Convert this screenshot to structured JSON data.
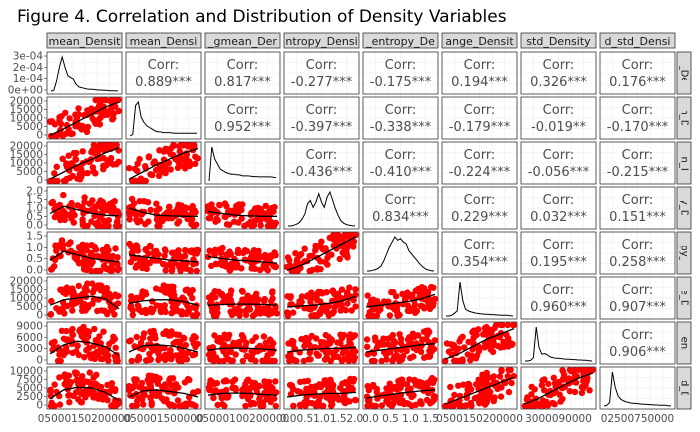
{
  "title": "Figure 4. Correlation and Distribution of Density Variables",
  "chart_data": {
    "type": "scatter",
    "matrix_type": "pairs-plot (ggpairs)",
    "upper_label_prefix": "Corr:",
    "colors": {
      "points": "#ff0000",
      "line": "#000000",
      "strip_bg": "#d9d9d9",
      "text": "#4d4d4d"
    },
    "column_strips": [
      "mean_Densit",
      "mean_Densi",
      "_gmean_Der",
      "ntropy_Densi",
      "_entropy_De",
      "ange_Densit",
      "std_Density",
      "d_std_Densi"
    ],
    "row_strips": [
      "n_Der",
      "an_De",
      "ean_De",
      "py_De",
      "tropy_De",
      "ge_De",
      "Densi",
      "std_De"
    ],
    "correlations": [
      [
        "",
        "0.889***",
        "0.817***",
        "-0.277***",
        "-0.175***",
        "0.194***",
        "0.326***",
        "0.176***"
      ],
      [
        "",
        "",
        "0.952***",
        "-0.397***",
        "-0.338***",
        "-0.179***",
        "-0.019**",
        "-0.170***"
      ],
      [
        "",
        "",
        "",
        "-0.436***",
        "-0.410***",
        "-0.224***",
        "-0.056***",
        "-0.215***"
      ],
      [
        "",
        "",
        "",
        "",
        "0.834***",
        "0.229***",
        "0.032***",
        "0.151***"
      ],
      [
        "",
        "",
        "",
        "",
        "",
        "0.354***",
        "0.195***",
        "0.258***"
      ],
      [
        "",
        "",
        "",
        "",
        "",
        "",
        "0.960***",
        "0.907***"
      ],
      [
        "",
        "",
        "",
        "",
        "",
        "",
        "",
        "0.906***"
      ],
      [
        "",
        "",
        "",
        "",
        "",
        "",
        "",
        ""
      ]
    ],
    "y_tick_labels": [
      [
        "3e-04",
        "2e-04",
        "1e-04",
        "0e+00"
      ],
      [
        "20000",
        "15000",
        "10000",
        "5000",
        "0"
      ],
      [
        "20000",
        "15000",
        "10000",
        "5000",
        "0"
      ],
      [
        "2.0",
        "1.5",
        "1.0",
        "0.5",
        "0.0"
      ],
      [
        "1.5",
        "1.0",
        "0.5",
        "0.0"
      ],
      [
        "20000",
        "15000",
        "10000",
        "5000",
        "0"
      ],
      [
        "9000",
        "6000",
        "3000",
        "0"
      ],
      [
        "10000",
        "7500",
        "5000",
        "2500",
        "0"
      ]
    ],
    "x_tick_labels": [
      "05000150200000",
      "050001500000",
      "05000100200000",
      "0.00.51.01.52.0",
      "0.0 0.5 1.0 1.5",
      "0500150200000",
      "3000090000",
      "02500750000"
    ],
    "diag_density": [
      [
        0,
        0.02,
        0.3,
        0.7,
        1,
        0.7,
        0.45,
        0.4,
        0.35,
        0.2,
        0.12,
        0.1,
        0.08,
        0.06,
        0.05,
        0.05,
        0.04,
        0.03,
        0.03,
        0.02,
        0.02,
        0.01,
        0.01,
        0.01,
        0
      ],
      [
        0,
        0.05,
        0.9,
        1,
        0.55,
        0.4,
        0.3,
        0.25,
        0.2,
        0.15,
        0.12,
        0.12,
        0.1,
        0.1,
        0.1,
        0.09,
        0.08,
        0.08,
        0.08,
        0.08,
        0.08,
        0.08,
        0.08,
        0.08,
        0.08
      ],
      [
        0,
        1,
        0.65,
        0.5,
        0.35,
        0.3,
        0.25,
        0.22,
        0.2,
        0.2,
        0.18,
        0.18,
        0.15,
        0.15,
        0.15,
        0.14,
        0.13,
        0.13,
        0.12,
        0.12,
        0.12,
        0.12,
        0.12,
        0.11,
        0.1
      ],
      [
        0,
        0,
        0.02,
        0.05,
        0.1,
        0.2,
        0.35,
        0.65,
        0.75,
        0.55,
        0.7,
        0.95,
        0.7,
        0.55,
        0.85,
        1,
        0.75,
        0.5,
        0.3,
        0.15,
        0.08,
        0.04,
        0.02,
        0.01,
        0
      ],
      [
        0,
        0,
        0.02,
        0.04,
        0.08,
        0.15,
        0.3,
        0.5,
        0.7,
        0.85,
        1,
        0.9,
        0.95,
        0.85,
        0.8,
        0.6,
        0.5,
        0.4,
        0.3,
        0.2,
        0.12,
        0.06,
        0.03,
        0.01,
        0
      ],
      [
        0,
        0,
        0.02,
        0.08,
        0.15,
        1,
        0.45,
        0.2,
        0.15,
        0.12,
        0.1,
        0.08,
        0.07,
        0.06,
        0.05,
        0.05,
        0.04,
        0.04,
        0.03,
        0.03,
        0.02,
        0.02,
        0.02,
        0.01,
        0
      ],
      [
        0,
        0,
        0.02,
        0.1,
        1,
        0.4,
        0.2,
        0.22,
        0.18,
        0.12,
        0.1,
        0.08,
        0.08,
        0.07,
        0.06,
        0.05,
        0.05,
        0.04,
        0.04,
        0.03,
        0.03,
        0.02,
        0.02,
        0.01,
        0
      ],
      [
        0,
        0.02,
        0.1,
        1,
        0.55,
        0.3,
        0.2,
        0.15,
        0.12,
        0.1,
        0.08,
        0.08,
        0.07,
        0.06,
        0.05,
        0.05,
        0.04,
        0.04,
        0.03,
        0.03,
        0.02,
        0.02,
        0.02,
        0.01,
        0
      ]
    ],
    "scatter_panels": [
      {
        "row": 1,
        "col": 0,
        "ymax": 1.0,
        "trend": [
          0.02,
          0.2,
          0.4,
          0.6,
          0.8,
          0.95
        ]
      },
      {
        "row": 2,
        "col": 0,
        "ymax": 1.0,
        "trend": [
          0.05,
          0.25,
          0.45,
          0.6,
          0.78,
          0.92
        ]
      },
      {
        "row": 2,
        "col": 1,
        "ymax": 1.0,
        "trend": [
          0.05,
          0.25,
          0.45,
          0.62,
          0.78,
          0.9
        ]
      },
      {
        "row": 3,
        "col": 0,
        "ymax": 0.9,
        "trend": [
          0.35,
          0.55,
          0.45,
          0.35,
          0.3,
          0.28
        ]
      },
      {
        "row": 3,
        "col": 1,
        "ymax": 0.75,
        "trend": [
          0.5,
          0.38,
          0.3,
          0.28,
          0.27,
          0.27
        ]
      },
      {
        "row": 3,
        "col": 2,
        "ymax": 0.7,
        "trend": [
          0.4,
          0.35,
          0.3,
          0.28,
          0.27,
          0.27
        ]
      },
      {
        "row": 4,
        "col": 0,
        "ymax": 0.85,
        "trend": [
          0.3,
          0.55,
          0.45,
          0.35,
          0.3,
          0.25
        ]
      },
      {
        "row": 4,
        "col": 1,
        "ymax": 0.75,
        "trend": [
          0.45,
          0.4,
          0.35,
          0.3,
          0.28,
          0.25
        ]
      },
      {
        "row": 4,
        "col": 2,
        "ymax": 0.7,
        "trend": [
          0.4,
          0.35,
          0.3,
          0.28,
          0.25,
          0.22
        ]
      },
      {
        "row": 4,
        "col": 3,
        "ymax": 1.0,
        "trend": [
          0.02,
          0.15,
          0.35,
          0.55,
          0.75,
          0.95
        ]
      },
      {
        "row": 5,
        "col": 0,
        "ymax": 0.9,
        "trend": [
          0.3,
          0.45,
          0.5,
          0.55,
          0.48,
          0.2
        ]
      },
      {
        "row": 5,
        "col": 1,
        "ymax": 0.9,
        "trend": [
          0.35,
          0.42,
          0.45,
          0.45,
          0.4,
          0.3
        ]
      },
      {
        "row": 5,
        "col": 2,
        "ymax": 0.85,
        "trend": [
          0.3,
          0.32,
          0.33,
          0.33,
          0.32,
          0.3
        ]
      },
      {
        "row": 5,
        "col": 3,
        "ymax": 0.8,
        "trend": [
          0.25,
          0.28,
          0.3,
          0.35,
          0.42,
          0.55
        ]
      },
      {
        "row": 5,
        "col": 4,
        "ymax": 0.8,
        "trend": [
          0.25,
          0.3,
          0.35,
          0.4,
          0.48,
          0.6
        ]
      },
      {
        "row": 6,
        "col": 0,
        "ymax": 0.95,
        "trend": [
          0.2,
          0.45,
          0.55,
          0.5,
          0.4,
          0.15
        ]
      },
      {
        "row": 6,
        "col": 1,
        "ymax": 0.95,
        "trend": [
          0.25,
          0.42,
          0.45,
          0.42,
          0.35,
          0.25
        ]
      },
      {
        "row": 6,
        "col": 2,
        "ymax": 0.9,
        "trend": [
          0.3,
          0.35,
          0.36,
          0.35,
          0.33,
          0.3
        ]
      },
      {
        "row": 6,
        "col": 3,
        "ymax": 0.85,
        "trend": [
          0.25,
          0.3,
          0.33,
          0.35,
          0.35,
          0.38
        ]
      },
      {
        "row": 6,
        "col": 4,
        "ymax": 0.85,
        "trend": [
          0.25,
          0.3,
          0.35,
          0.4,
          0.45,
          0.48
        ]
      },
      {
        "row": 6,
        "col": 5,
        "ymax": 1.0,
        "trend": [
          0.05,
          0.2,
          0.4,
          0.6,
          0.75,
          0.9
        ]
      },
      {
        "row": 7,
        "col": 0,
        "ymax": 0.95,
        "trend": [
          0.2,
          0.45,
          0.52,
          0.5,
          0.38,
          0.15
        ]
      },
      {
        "row": 7,
        "col": 1,
        "ymax": 0.95,
        "trend": [
          0.25,
          0.42,
          0.45,
          0.4,
          0.35,
          0.25
        ]
      },
      {
        "row": 7,
        "col": 2,
        "ymax": 0.9,
        "trend": [
          0.3,
          0.35,
          0.36,
          0.35,
          0.32,
          0.3
        ]
      },
      {
        "row": 7,
        "col": 3,
        "ymax": 0.85,
        "trend": [
          0.25,
          0.3,
          0.33,
          0.35,
          0.35,
          0.38
        ]
      },
      {
        "row": 7,
        "col": 4,
        "ymax": 0.85,
        "trend": [
          0.22,
          0.28,
          0.33,
          0.38,
          0.42,
          0.45
        ]
      },
      {
        "row": 7,
        "col": 5,
        "ymax": 1.0,
        "trend": [
          0.05,
          0.2,
          0.35,
          0.5,
          0.65,
          0.8
        ]
      },
      {
        "row": 7,
        "col": 6,
        "ymax": 1.0,
        "trend": [
          0.05,
          0.2,
          0.4,
          0.6,
          0.78,
          0.92
        ]
      }
    ]
  }
}
